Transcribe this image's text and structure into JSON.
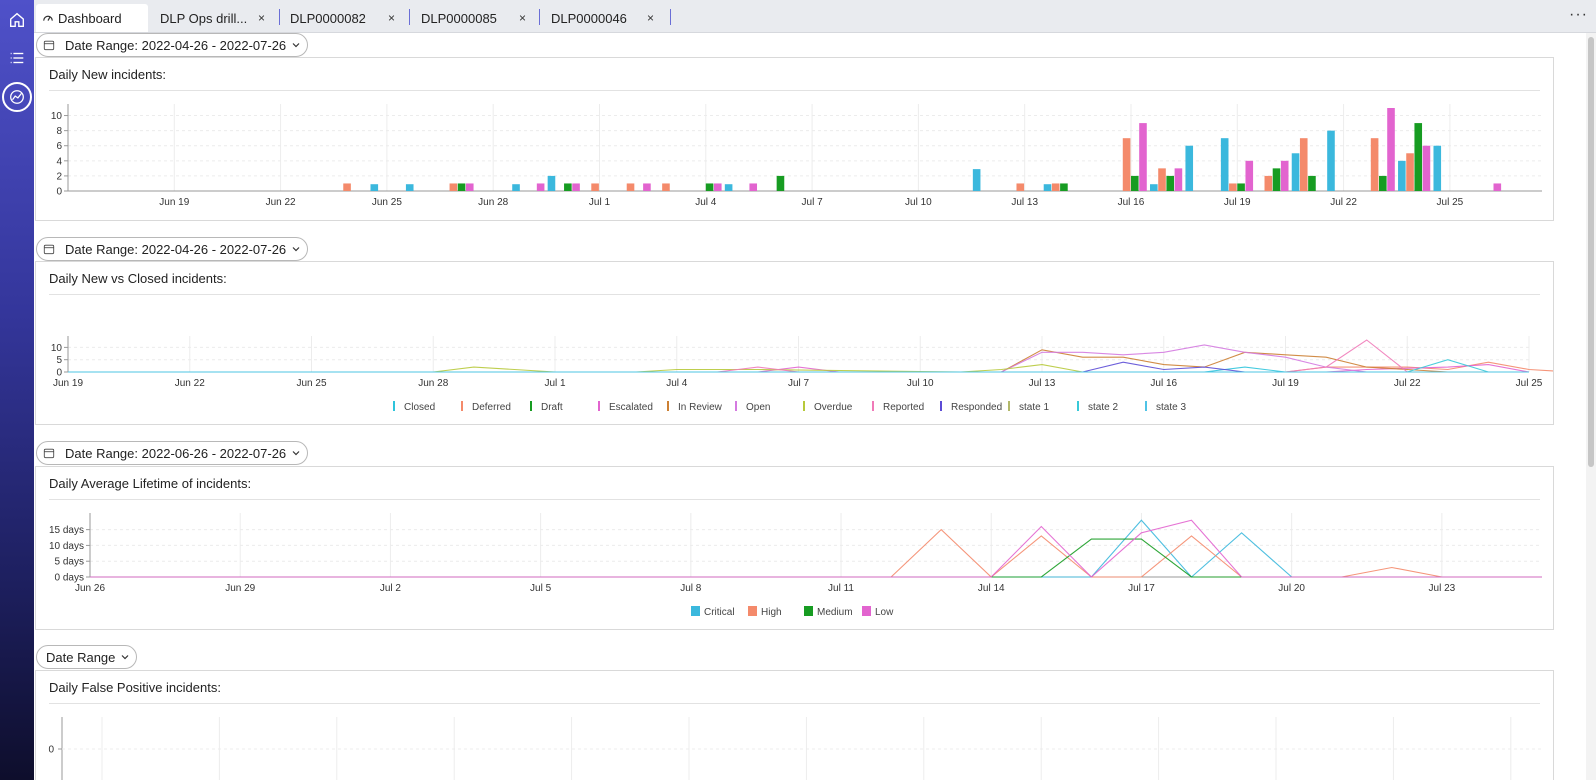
{
  "tabs": [
    {
      "label": "Dashboard",
      "active": true,
      "closable": false
    },
    {
      "label": "DLP Ops drill...",
      "active": false,
      "closable": true
    },
    {
      "label": "DLP0000082",
      "active": false,
      "closable": true
    },
    {
      "label": "DLP0000085",
      "active": false,
      "closable": true
    },
    {
      "label": "DLP0000046",
      "active": false,
      "closable": true
    }
  ],
  "tab_close_glyph": "×",
  "more_glyph": "···",
  "sidebar": {
    "icons": [
      "home-icon",
      "list-icon",
      "analytics-icon"
    ],
    "active": "analytics-icon"
  },
  "colors": {
    "critical": "#3bb8dd",
    "high": "#f48a6b",
    "medium": "#179c22",
    "low": "#e264cf",
    "accent": "#4f51c9"
  },
  "panels": [
    {
      "date_label": "Date Range: 2022-04-26 - 2022-07-26",
      "title": "Daily New incidents:"
    },
    {
      "date_label": "Date Range: 2022-04-26 - 2022-07-26",
      "title": "Daily New vs Closed incidents:"
    },
    {
      "date_label": "Date Range: 2022-06-26 - 2022-07-26",
      "title": "Daily Average Lifetime of incidents:"
    },
    {
      "date_label": "Date Range",
      "title": "Daily False Positive incidents:"
    }
  ],
  "chart_data": [
    {
      "type": "bar",
      "x_start": "Jun 16",
      "x_tick_labels": [
        "Jun 19",
        "Jun 22",
        "Jun 25",
        "Jun 28",
        "Jul 1",
        "Jul 4",
        "Jul 7",
        "Jul 10",
        "Jul 13",
        "Jul 16",
        "Jul 19",
        "Jul 22",
        "Jul 25"
      ],
      "y_ticks": [
        0,
        2,
        4,
        6,
        8,
        10
      ],
      "ylim": [
        0,
        11
      ],
      "grid": true,
      "legend": "bottom",
      "series": [
        {
          "name": "Critical",
          "color": "#3bb8dd",
          "values": [
            [
              9,
              0.9
            ],
            [
              10,
              0.9
            ],
            [
              13,
              0.9
            ],
            [
              14,
              2
            ],
            [
              19,
              0.9
            ],
            [
              26,
              2.9
            ],
            [
              25,
              0
            ],
            [
              28,
              0.9
            ],
            [
              31,
              0.9
            ],
            [
              32,
              6
            ],
            [
              33,
              7
            ],
            [
              34,
              0
            ],
            [
              35,
              5
            ],
            [
              36,
              8
            ],
            [
              37,
              0
            ],
            [
              38,
              4
            ],
            [
              39,
              6
            ],
            [
              42,
              0
            ]
          ]
        },
        {
          "name": "High",
          "color": "#f48a6b",
          "values": [
            [
              8,
              1
            ],
            [
              11,
              1
            ],
            [
              15,
              1
            ],
            [
              16,
              1
            ],
            [
              17,
              1
            ],
            [
              27,
              1
            ],
            [
              28,
              1
            ],
            [
              30,
              7
            ],
            [
              31,
              3
            ],
            [
              33,
              1
            ],
            [
              34,
              2
            ],
            [
              35,
              7
            ],
            [
              37,
              7
            ],
            [
              38,
              5
            ],
            [
              42,
              0
            ],
            [
              43,
              2
            ]
          ]
        },
        {
          "name": "Medium",
          "color": "#179c22",
          "values": [
            [
              11,
              1
            ],
            [
              14,
              1
            ],
            [
              18,
              1
            ],
            [
              20,
              2
            ],
            [
              28,
              1
            ],
            [
              30,
              2
            ],
            [
              31,
              2
            ],
            [
              33,
              1
            ],
            [
              34,
              3
            ],
            [
              35,
              2
            ],
            [
              37,
              2
            ],
            [
              38,
              9
            ]
          ]
        },
        {
          "name": "Low",
          "color": "#e264cf",
          "values": [
            [
              11,
              1
            ],
            [
              13,
              1
            ],
            [
              14,
              1
            ],
            [
              16,
              1
            ],
            [
              18,
              1
            ],
            [
              19,
              1
            ],
            [
              30,
              9
            ],
            [
              31,
              3
            ],
            [
              32,
              0
            ],
            [
              33,
              4
            ],
            [
              34,
              4
            ],
            [
              37,
              11
            ],
            [
              38,
              6
            ],
            [
              40,
              1
            ]
          ]
        }
      ]
    },
    {
      "type": "line",
      "x_tick_labels": [
        "Jun 19",
        "Jun 22",
        "Jun 25",
        "Jun 28",
        "Jul 1",
        "Jul 4",
        "Jul 7",
        "Jul 10",
        "Jul 13",
        "Jul 16",
        "Jul 19",
        "Jul 22",
        "Jul 25"
      ],
      "y_ticks": [
        0,
        5,
        10
      ],
      "ylim": [
        0,
        13
      ],
      "grid": true,
      "legend": "bottom",
      "series": [
        {
          "name": "Closed",
          "color": "#2ec4dc",
          "values": [
            [
              0,
              0
            ],
            [
              27,
              0
            ],
            [
              28,
              0
            ],
            [
              29,
              2
            ],
            [
              30,
              0
            ],
            [
              36,
              0
            ]
          ]
        },
        {
          "name": "Deferred",
          "color": "#f48a6b",
          "values": [
            [
              0,
              0
            ],
            [
              30,
              0
            ],
            [
              31,
              2
            ],
            [
              32,
              2
            ],
            [
              33,
              2
            ],
            [
              34,
              1
            ],
            [
              35,
              4
            ],
            [
              36,
              1
            ],
            [
              37,
              0
            ]
          ]
        },
        {
          "name": "Draft",
          "color": "#179c22",
          "values": [
            [
              0,
              0
            ],
            [
              36,
              0
            ]
          ]
        },
        {
          "name": "Escalated",
          "color": "#e264cf",
          "values": [
            [
              0,
              0
            ],
            [
              17,
              0
            ],
            [
              18,
              2
            ],
            [
              19,
              0
            ],
            [
              31,
              0
            ],
            [
              32,
              1
            ],
            [
              34,
              2
            ],
            [
              35,
              3
            ],
            [
              36,
              0
            ]
          ]
        },
        {
          "name": "In Review",
          "color": "#cc8033",
          "values": [
            [
              0,
              0
            ],
            [
              23,
              0
            ],
            [
              24,
              9
            ],
            [
              25,
              6
            ],
            [
              26,
              6
            ],
            [
              27,
              3
            ],
            [
              28,
              2
            ],
            [
              29,
              8
            ],
            [
              30,
              7
            ],
            [
              31,
              6
            ],
            [
              32,
              2
            ],
            [
              33,
              1
            ],
            [
              34,
              0
            ]
          ]
        },
        {
          "name": "Open",
          "color": "#d47ae0",
          "values": [
            [
              0,
              0
            ],
            [
              23,
              0
            ],
            [
              24,
              8
            ],
            [
              25,
              8
            ],
            [
              26,
              7
            ],
            [
              27,
              8
            ],
            [
              28,
              11
            ],
            [
              29,
              8
            ],
            [
              30,
              6
            ],
            [
              31,
              2
            ],
            [
              32,
              0
            ]
          ]
        },
        {
          "name": "Overdue",
          "color": "#b7c93b",
          "values": [
            [
              0,
              0
            ],
            [
              9,
              0
            ],
            [
              10,
              2
            ],
            [
              11,
              1
            ],
            [
              12,
              0
            ],
            [
              14,
              0
            ],
            [
              15,
              1
            ],
            [
              16,
              1
            ],
            [
              17,
              1
            ],
            [
              22,
              0
            ],
            [
              23,
              1
            ],
            [
              24,
              3
            ],
            [
              25,
              0
            ]
          ]
        },
        {
          "name": "Reported",
          "color": "#f07ab8",
          "values": [
            [
              0,
              0
            ],
            [
              16,
              0
            ],
            [
              17,
              2
            ],
            [
              18,
              0
            ],
            [
              30,
              0
            ],
            [
              31,
              2
            ],
            [
              32,
              13
            ],
            [
              33,
              0
            ]
          ]
        },
        {
          "name": "Responded",
          "color": "#5c4cd6",
          "values": [
            [
              0,
              0
            ],
            [
              25,
              0
            ],
            [
              26,
              4
            ],
            [
              27,
              1
            ],
            [
              28,
              2
            ],
            [
              29,
              0
            ]
          ]
        },
        {
          "name": "state 1",
          "color": "#b2b86a",
          "values": [
            [
              0,
              0
            ],
            [
              36,
              0
            ]
          ]
        },
        {
          "name": "state 2",
          "color": "#38c9d8",
          "values": [
            [
              0,
              0
            ],
            [
              33,
              0
            ],
            [
              34,
              5
            ],
            [
              35,
              0
            ],
            [
              36,
              0
            ]
          ]
        },
        {
          "name": "state 3",
          "color": "#4fc3e6",
          "values": [
            [
              0,
              0
            ],
            [
              36,
              0
            ]
          ]
        }
      ]
    },
    {
      "type": "line",
      "x_tick_labels": [
        "Jun 26",
        "Jun 29",
        "Jul 2",
        "Jul 5",
        "Jul 8",
        "Jul 11",
        "Jul 14",
        "Jul 17",
        "Jul 20",
        "Jul 23"
      ],
      "y_tick_labels": [
        "0 days",
        "5 days",
        "10 days",
        "15 days"
      ],
      "ylim": [
        0,
        19
      ],
      "grid": true,
      "legend": "bottom",
      "series": [
        {
          "name": "Critical",
          "color": "#3bb8dd",
          "values": [
            [
              0,
              0
            ],
            [
              19,
              0
            ],
            [
              20,
              0
            ],
            [
              21,
              18
            ],
            [
              22,
              0
            ],
            [
              23,
              14
            ],
            [
              24,
              0
            ],
            [
              29,
              0
            ]
          ]
        },
        {
          "name": "High",
          "color": "#f48a6b",
          "values": [
            [
              0,
              0
            ],
            [
              16,
              0
            ],
            [
              17,
              15
            ],
            [
              18,
              0
            ],
            [
              19,
              13
            ],
            [
              20,
              0
            ],
            [
              21,
              0
            ],
            [
              22,
              13
            ],
            [
              23,
              0
            ],
            [
              24,
              0
            ],
            [
              25,
              0
            ],
            [
              26,
              3
            ],
            [
              27,
              0
            ],
            [
              29,
              0
            ]
          ]
        },
        {
          "name": "Medium",
          "color": "#179c22",
          "values": [
            [
              0,
              0
            ],
            [
              19,
              0
            ],
            [
              20,
              12
            ],
            [
              21,
              12
            ],
            [
              22,
              0
            ],
            [
              29,
              0
            ]
          ]
        },
        {
          "name": "Low",
          "color": "#e264cf",
          "values": [
            [
              0,
              0
            ],
            [
              18,
              0
            ],
            [
              19,
              16
            ],
            [
              20,
              0
            ],
            [
              21,
              14
            ],
            [
              22,
              18
            ],
            [
              23,
              0
            ],
            [
              29,
              0
            ]
          ]
        }
      ]
    },
    {
      "type": "line",
      "y_ticks": [
        0
      ],
      "grid": true,
      "series": []
    }
  ]
}
